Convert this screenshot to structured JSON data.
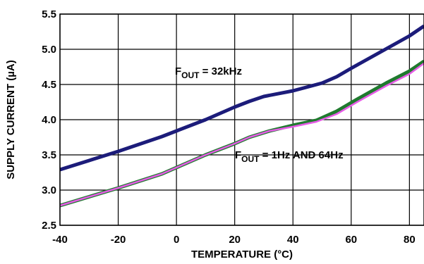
{
  "chart_data": {
    "type": "line",
    "xlabel": "TEMPERATURE (°C)",
    "ylabel": "SUPPLY CURRENT (µA)",
    "xlim": [
      -40,
      85
    ],
    "ylim": [
      2.5,
      5.5
    ],
    "xticks": [
      -40,
      -20,
      0,
      20,
      40,
      60,
      80
    ],
    "yticks": [
      "2.5",
      "3.0",
      "3.5",
      "4.0",
      "4.5",
      "5.0",
      "5.5"
    ],
    "grid": true,
    "series": [
      {
        "name": "FOUT = 32kHz",
        "color": "#1c1c7a",
        "points": [
          [
            -40,
            3.29
          ],
          [
            -20,
            3.55
          ],
          [
            -5,
            3.76
          ],
          [
            0,
            3.84
          ],
          [
            10,
            4.0
          ],
          [
            20,
            4.18
          ],
          [
            25,
            4.26
          ],
          [
            30,
            4.33
          ],
          [
            40,
            4.41
          ],
          [
            50,
            4.52
          ],
          [
            55,
            4.61
          ],
          [
            60,
            4.73
          ],
          [
            70,
            4.96
          ],
          [
            80,
            5.19
          ],
          [
            85,
            5.33
          ]
        ]
      },
      {
        "name": "FOUT = 1Hz",
        "color": "#e65ce6",
        "points": [
          [
            -40,
            2.78
          ],
          [
            -20,
            3.03
          ],
          [
            -5,
            3.23
          ],
          [
            0,
            3.32
          ],
          [
            10,
            3.5
          ],
          [
            20,
            3.66
          ],
          [
            25,
            3.75
          ],
          [
            32,
            3.84
          ],
          [
            40,
            3.9
          ],
          [
            48,
            3.97
          ],
          [
            55,
            4.08
          ],
          [
            62,
            4.25
          ],
          [
            72,
            4.48
          ],
          [
            80,
            4.65
          ],
          [
            85,
            4.8
          ]
        ]
      },
      {
        "name": "FOUT = 64Hz",
        "color": "#1f7a2e",
        "points": [
          [
            -40,
            2.78
          ],
          [
            -20,
            3.03
          ],
          [
            -5,
            3.23
          ],
          [
            0,
            3.32
          ],
          [
            10,
            3.5
          ],
          [
            20,
            3.66
          ],
          [
            25,
            3.75
          ],
          [
            32,
            3.84
          ],
          [
            40,
            3.92
          ],
          [
            48,
            3.99
          ],
          [
            55,
            4.12
          ],
          [
            62,
            4.29
          ],
          [
            72,
            4.52
          ],
          [
            80,
            4.69
          ],
          [
            85,
            4.83
          ]
        ]
      }
    ],
    "annotations": [
      {
        "main": "F",
        "sub": "OUT",
        "rest": " = 32kHz"
      },
      {
        "main": "F",
        "sub": "OUT",
        "rest": " = 1Hz AND 64Hz"
      }
    ]
  }
}
